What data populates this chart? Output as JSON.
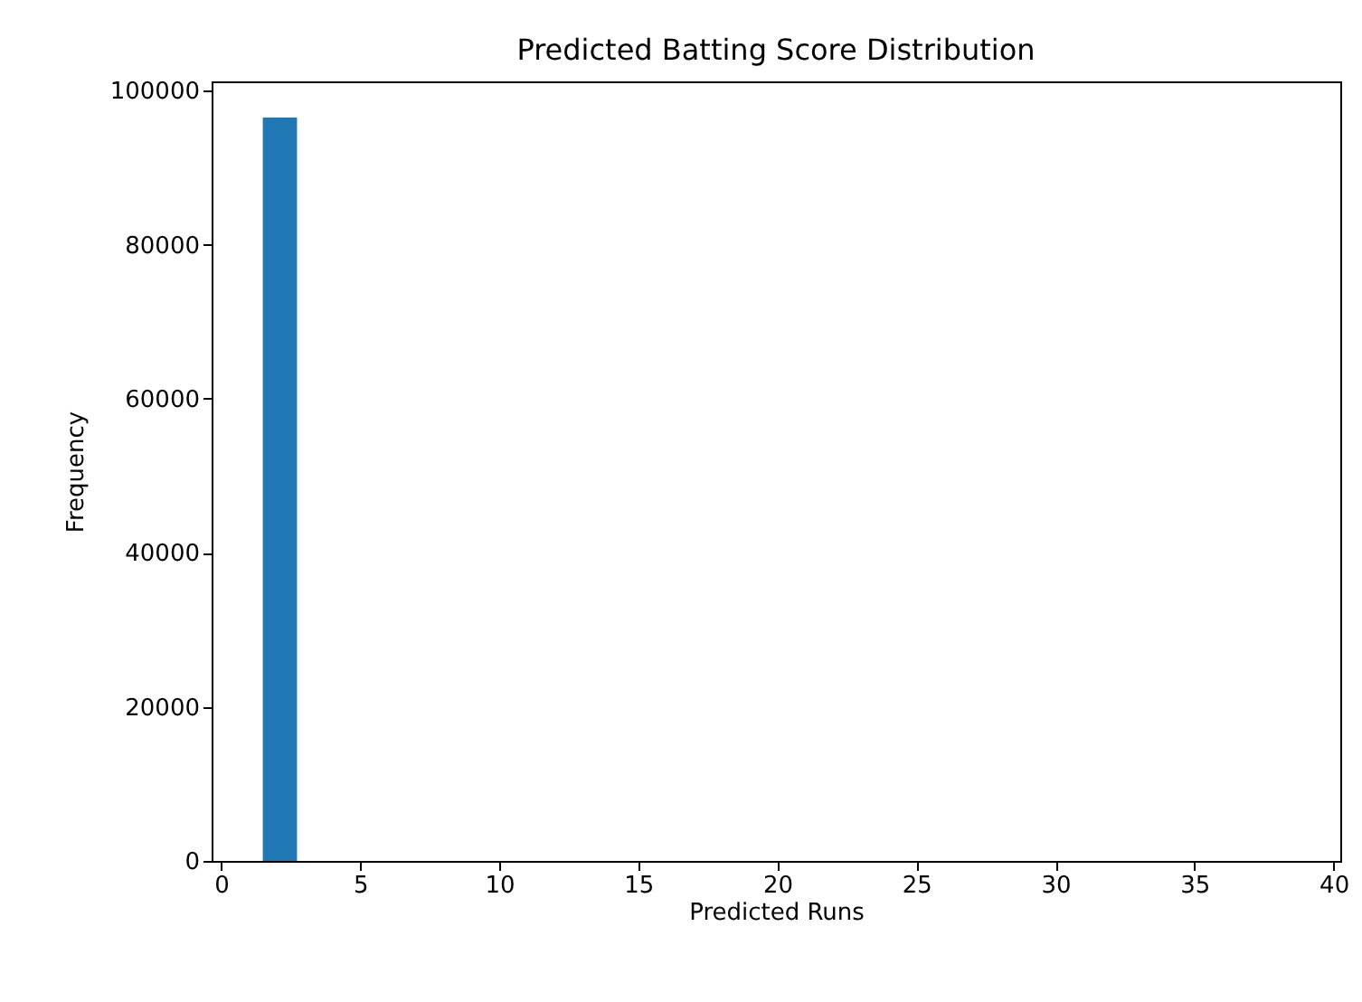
{
  "chart_data": {
    "type": "histogram",
    "title": "Predicted Batting Score Distribution",
    "xlabel": "Predicted Runs",
    "ylabel": "Frequency",
    "bins": [
      1.5,
      2.73,
      3.96,
      5.19,
      6.42,
      7.65,
      8.88,
      10.11,
      11.34,
      12.57,
      13.8,
      15.03,
      16.26,
      17.49,
      18.72,
      19.95,
      21.18,
      22.41,
      23.64,
      24.87,
      26.1,
      27.33,
      28.56,
      29.79,
      31.02,
      32.25,
      33.48,
      34.71,
      35.94,
      37.17,
      38.4
    ],
    "values": [
      96500,
      0,
      0,
      0,
      0,
      0,
      0,
      0,
      0,
      0,
      0,
      0,
      0,
      0,
      0,
      0,
      0,
      0,
      0,
      0,
      0,
      0,
      0,
      0,
      0,
      0,
      0,
      0,
      0,
      0
    ],
    "color": "#1f77b4",
    "xlim": [
      -0.34,
      40.24
    ],
    "xticks": [
      0,
      5,
      10,
      15,
      20,
      25,
      30,
      35,
      40
    ],
    "ylim": [
      0,
      101200
    ],
    "yticks": [
      0,
      20000,
      40000,
      60000,
      80000,
      100000
    ],
    "grid": false
  }
}
